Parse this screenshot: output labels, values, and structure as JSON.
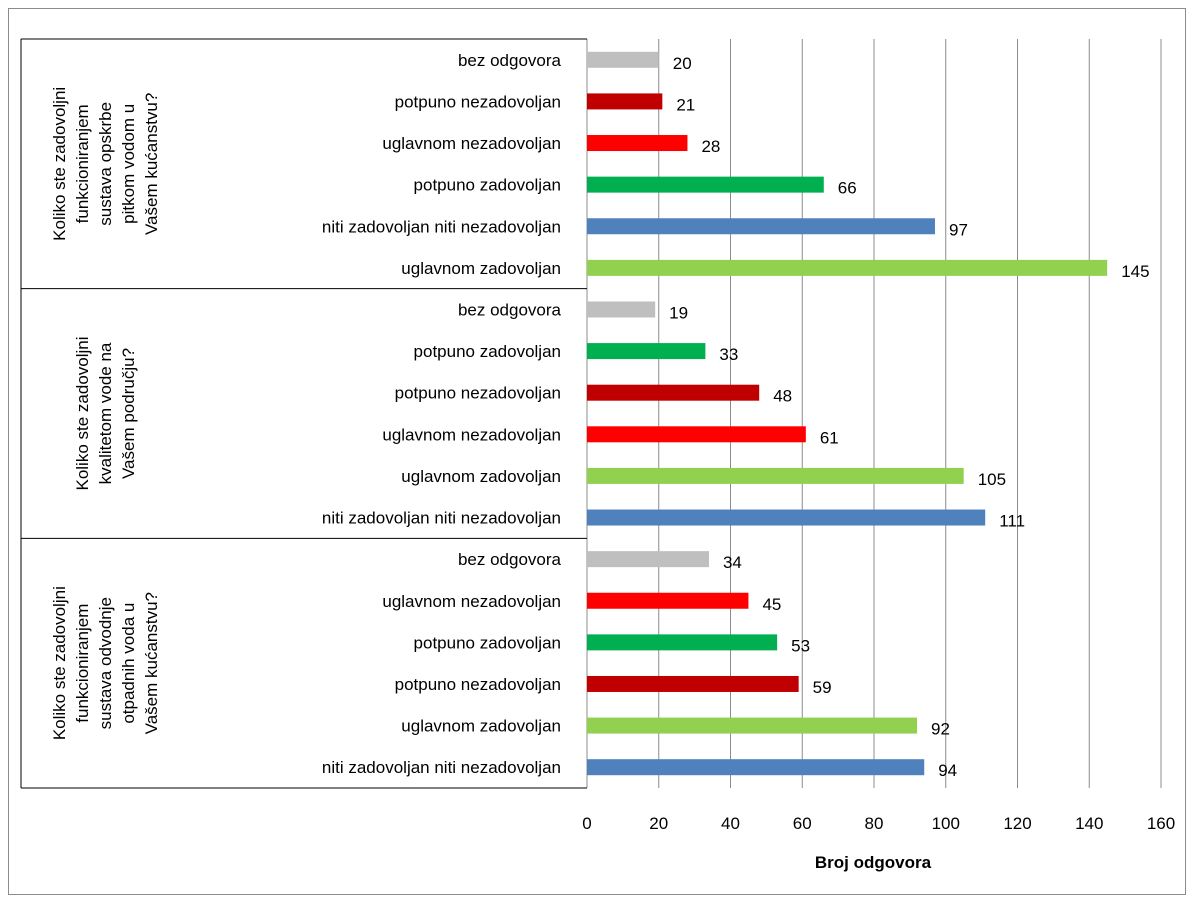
{
  "chart_data": {
    "type": "bar",
    "orientation": "horizontal",
    "xlabel": "Broj odgovora",
    "xlim": [
      0,
      160
    ],
    "xticks": [
      0,
      20,
      40,
      60,
      80,
      100,
      120,
      140,
      160
    ],
    "grid": true,
    "groups": [
      {
        "label": "Koliko ste zadovoljni funkcioniranjem sustava opskrbe pitkom vodom u Vašem kućanstvu?",
        "label_lines": [
          "Koliko ste zadovoljni",
          "funkcioniranjem",
          "sustava opskrbe",
          "pitkom vodom u",
          "Vašem kućanstvu?"
        ],
        "bars": [
          {
            "category": "bez odgovora",
            "value": 20,
            "color": "#bfbfbf"
          },
          {
            "category": "potpuno nezadovoljan",
            "value": 21,
            "color": "#c00000"
          },
          {
            "category": "uglavnom nezadovoljan",
            "value": 28,
            "color": "#ff0000"
          },
          {
            "category": "potpuno zadovoljan",
            "value": 66,
            "color": "#00b050"
          },
          {
            "category": "niti zadovoljan niti nezadovoljan",
            "value": 97,
            "color": "#4f81bd"
          },
          {
            "category": "uglavnom zadovoljan",
            "value": 145,
            "color": "#92d050"
          }
        ]
      },
      {
        "label": "Koliko ste zadovoljni kvalitetom vode na Vašem području?",
        "label_lines": [
          "Koliko ste zadovoljni",
          "kvalitetom vode na",
          "Vašem području?"
        ],
        "bars": [
          {
            "category": "bez odgovora",
            "value": 19,
            "color": "#bfbfbf"
          },
          {
            "category": "potpuno zadovoljan",
            "value": 33,
            "color": "#00b050"
          },
          {
            "category": "potpuno nezadovoljan",
            "value": 48,
            "color": "#c00000"
          },
          {
            "category": "uglavnom nezadovoljan",
            "value": 61,
            "color": "#ff0000"
          },
          {
            "category": "uglavnom zadovoljan",
            "value": 105,
            "color": "#92d050"
          },
          {
            "category": "niti zadovoljan niti nezadovoljan",
            "value": 111,
            "color": "#4f81bd"
          }
        ]
      },
      {
        "label": "Koliko ste zadovoljni funkcioniranjem sustava odvodnje otpadnih voda u Vašem kućanstvu?",
        "label_lines": [
          "Koliko ste zadovoljni",
          "funkcioniranjem",
          "sustava odvodnje",
          "otpadnih voda u",
          "Vašem kućanstvu?"
        ],
        "bars": [
          {
            "category": "bez odgovora",
            "value": 34,
            "color": "#bfbfbf"
          },
          {
            "category": "uglavnom nezadovoljan",
            "value": 45,
            "color": "#ff0000"
          },
          {
            "category": "potpuno zadovoljan",
            "value": 53,
            "color": "#00b050"
          },
          {
            "category": "potpuno nezadovoljan",
            "value": 59,
            "color": "#c00000"
          },
          {
            "category": "uglavnom zadovoljan",
            "value": 92,
            "color": "#92d050"
          },
          {
            "category": "niti zadovoljan niti nezadovoljan",
            "value": 94,
            "color": "#4f81bd"
          }
        ]
      }
    ]
  }
}
